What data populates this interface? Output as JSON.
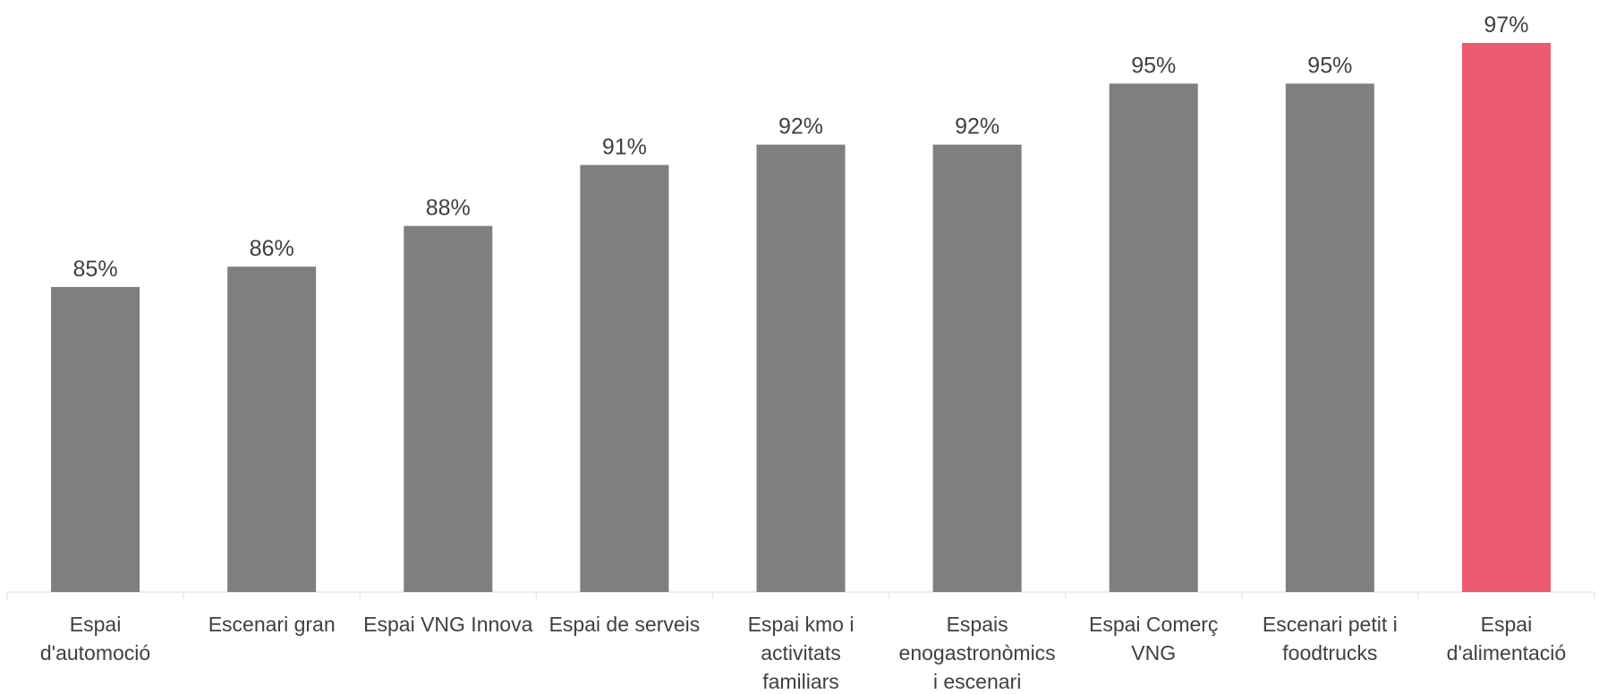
{
  "chart_data": {
    "type": "bar",
    "categories": [
      [
        "Espai",
        "d'automoció"
      ],
      [
        "Escenari gran"
      ],
      [
        "Espai VNG Innova"
      ],
      [
        "Espai de serveis"
      ],
      [
        "Espai kmo i",
        "activitats",
        "familiars"
      ],
      [
        "Espais",
        "enogastronòmics",
        "i escenari"
      ],
      [
        "Espai Comerç",
        "VNG"
      ],
      [
        "Escenari petit i",
        "foodtrucks"
      ],
      [
        "Espai",
        "d'alimentació"
      ]
    ],
    "values": [
      85,
      86,
      88,
      91,
      92,
      92,
      95,
      95,
      97
    ],
    "value_labels": [
      "85%",
      "86%",
      "88%",
      "91%",
      "92%",
      "92%",
      "95%",
      "95%",
      "97%"
    ],
    "colors": [
      "#7f7f7f",
      "#7f7f7f",
      "#7f7f7f",
      "#7f7f7f",
      "#7f7f7f",
      "#7f7f7f",
      "#7f7f7f",
      "#7f7f7f",
      "#eb5a6e"
    ],
    "title": "",
    "xlabel": "",
    "ylabel": "",
    "ylim": [
      70,
      97
    ],
    "grid": false,
    "legend": "none"
  }
}
